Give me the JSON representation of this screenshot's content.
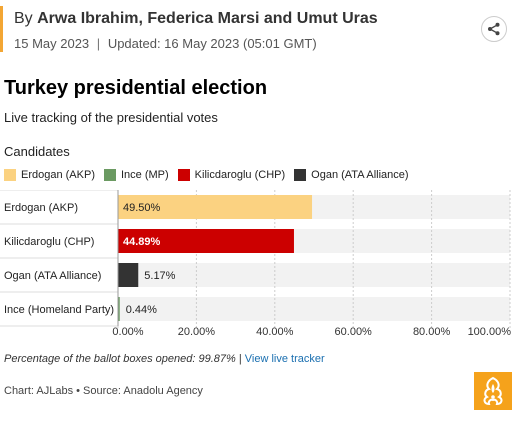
{
  "byline": {
    "prefix": "By",
    "authors": "Arwa Ibrahim, Federica Marsi and Umut Uras",
    "published": "15 May 2023",
    "updated": "Updated: 16 May 2023",
    "updated_time": "(05:01 GMT)",
    "separator": "|"
  },
  "share": {
    "icon": "share-icon"
  },
  "title": "Turkey presidential election",
  "subtitle": "Live tracking of the presidential votes",
  "legend_title": "Candidates",
  "chart_data": {
    "type": "bar",
    "orientation": "horizontal",
    "legend": [
      {
        "label": "Erdogan (AKP)",
        "color": "#fbd281"
      },
      {
        "label": "Ince (MP)",
        "color": "#6b9a62"
      },
      {
        "label": "Kilicdaroglu (CHP)",
        "color": "#cc0000"
      },
      {
        "label": "Ogan (ATA Alliance)",
        "color": "#333333"
      }
    ],
    "categories": [
      "Erdogan (AKP)",
      "Kilicdaroglu (CHP)",
      "Ogan (ATA Alliance)",
      "Ince (Homeland Party)"
    ],
    "values": [
      49.5,
      44.89,
      5.17,
      0.44
    ],
    "value_labels": [
      "49.50%",
      "44.89%",
      "5.17%",
      "0.44%"
    ],
    "bar_colors": [
      "#fbd281",
      "#cc0000",
      "#333333",
      "#6b9a62"
    ],
    "label_inside": [
      true,
      true,
      false,
      false
    ],
    "label_colors": [
      "#222222",
      "#ffffff",
      "#222222",
      "#222222"
    ],
    "xlim": [
      0,
      100
    ],
    "xticks": [
      "0.00%",
      "20.00%",
      "40.00%",
      "60.00%",
      "80.00%",
      "100.00%"
    ],
    "grid": true,
    "track_color": "#f2f2f2"
  },
  "footnote": {
    "text": "Percentage of the ballot boxes opened: 99.87%",
    "separator": " | ",
    "link": "View live tracker"
  },
  "credits": "Chart: AJLabs • Source: Anadolu Agency",
  "logo": {
    "icon": "al-jazeera-logo-icon",
    "color": "#f5a21b"
  }
}
